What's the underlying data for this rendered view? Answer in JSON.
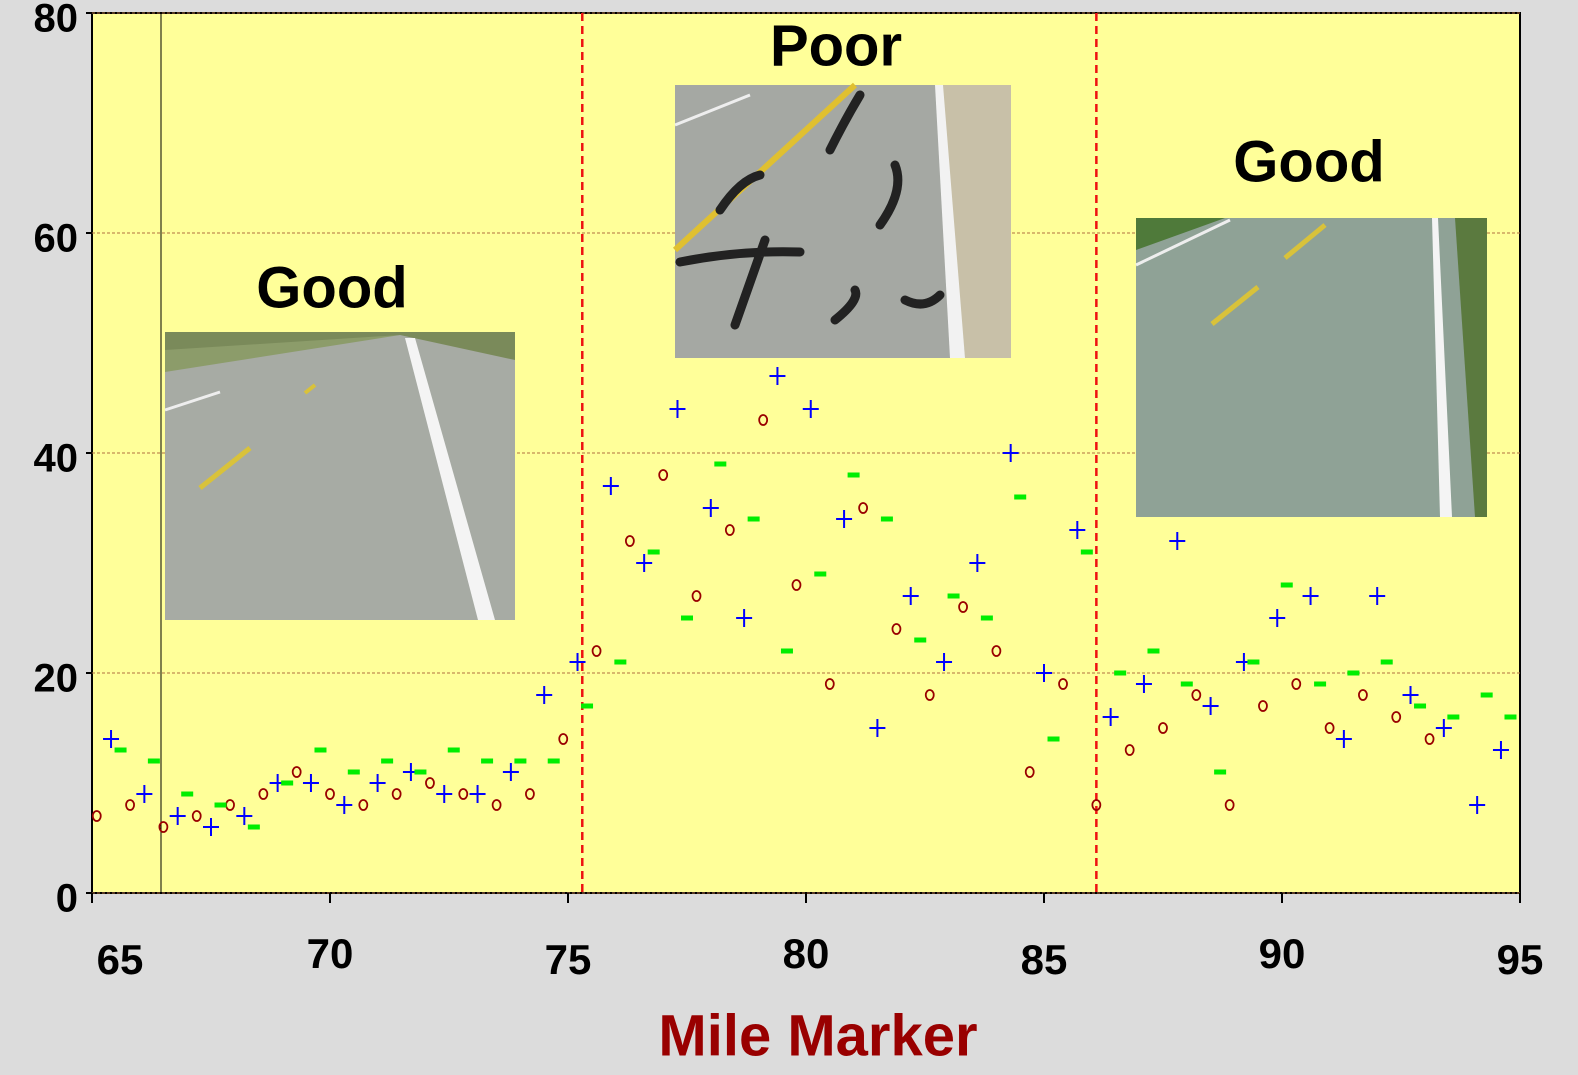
{
  "chart_data": {
    "type": "scatter",
    "x_label": "Mile Marker",
    "xlim": [
      65,
      95
    ],
    "xticks": [
      65,
      70,
      75,
      80,
      85,
      90,
      95
    ],
    "ylim": [
      0,
      80
    ],
    "yticks": [
      0,
      20,
      40,
      60,
      80
    ],
    "grid": true,
    "background": "#ffff99",
    "reference_lines": [
      75.3,
      86.1
    ],
    "annotations": [
      "Good",
      "Poor",
      "Good"
    ],
    "series": [
      {
        "color": "#990000",
        "marker": "circle",
        "x": [
          65.1,
          65.8,
          66.5,
          67.2,
          67.9,
          68.6,
          69.3,
          70.0,
          70.7,
          71.4,
          72.1,
          72.8,
          73.5,
          74.2,
          74.9,
          75.6,
          76.3,
          77.0,
          77.7,
          78.4,
          79.1,
          79.8,
          80.5,
          81.2,
          81.9,
          82.6,
          83.3,
          84.0,
          84.7,
          85.4,
          86.1,
          86.8,
          87.5,
          88.2,
          88.9,
          89.6,
          90.3,
          91.0,
          91.7,
          92.4,
          93.1
        ],
        "values": [
          7,
          8,
          6,
          7,
          8,
          9,
          11,
          9,
          8,
          9,
          10,
          9,
          8,
          9,
          14,
          22,
          32,
          38,
          27,
          33,
          43,
          28,
          19,
          35,
          24,
          18,
          26,
          22,
          11,
          19,
          8,
          13,
          15,
          18,
          8,
          17,
          19,
          15,
          18,
          16,
          14
        ]
      },
      {
        "color": "#0000ff",
        "marker": "plus",
        "x": [
          65.4,
          66.1,
          66.8,
          67.5,
          68.2,
          68.9,
          69.6,
          70.3,
          71.0,
          71.7,
          72.4,
          73.1,
          73.8,
          74.5,
          75.2,
          75.9,
          76.6,
          77.3,
          78.0,
          78.7,
          79.4,
          80.1,
          80.8,
          81.5,
          82.2,
          82.9,
          83.6,
          84.3,
          85.0,
          85.7,
          86.4,
          87.1,
          87.8,
          88.5,
          89.2,
          89.9,
          90.6,
          91.3,
          92.0,
          92.7,
          93.4,
          94.1,
          94.6
        ],
        "values": [
          14,
          9,
          7,
          6,
          7,
          10,
          10,
          8,
          10,
          11,
          9,
          9,
          11,
          18,
          21,
          37,
          30,
          44,
          35,
          25,
          47,
          44,
          34,
          15,
          27,
          21,
          30,
          40,
          20,
          33,
          16,
          19,
          32,
          17,
          21,
          25,
          27,
          14,
          27,
          18,
          15,
          8,
          13
        ]
      },
      {
        "color": "#00ee00",
        "marker": "dash",
        "x": [
          65.6,
          66.3,
          67.0,
          67.7,
          68.4,
          69.1,
          69.8,
          70.5,
          71.2,
          71.9,
          72.6,
          73.3,
          74.0,
          74.7,
          75.4,
          76.1,
          76.8,
          77.5,
          78.2,
          78.9,
          79.6,
          80.3,
          81.0,
          81.7,
          82.4,
          83.1,
          83.8,
          84.5,
          85.2,
          85.9,
          86.6,
          87.3,
          88.0,
          88.7,
          89.4,
          90.1,
          90.8,
          91.5,
          92.2,
          92.9,
          93.6,
          94.3,
          94.8
        ],
        "values": [
          13,
          12,
          9,
          8,
          6,
          10,
          13,
          11,
          12,
          11,
          13,
          12,
          12,
          12,
          17,
          21,
          31,
          25,
          39,
          34,
          22,
          29,
          38,
          34,
          23,
          27,
          25,
          36,
          14,
          31,
          20,
          22,
          19,
          11,
          21,
          28,
          19,
          20,
          21,
          17,
          16,
          18,
          16
        ]
      }
    ]
  }
}
